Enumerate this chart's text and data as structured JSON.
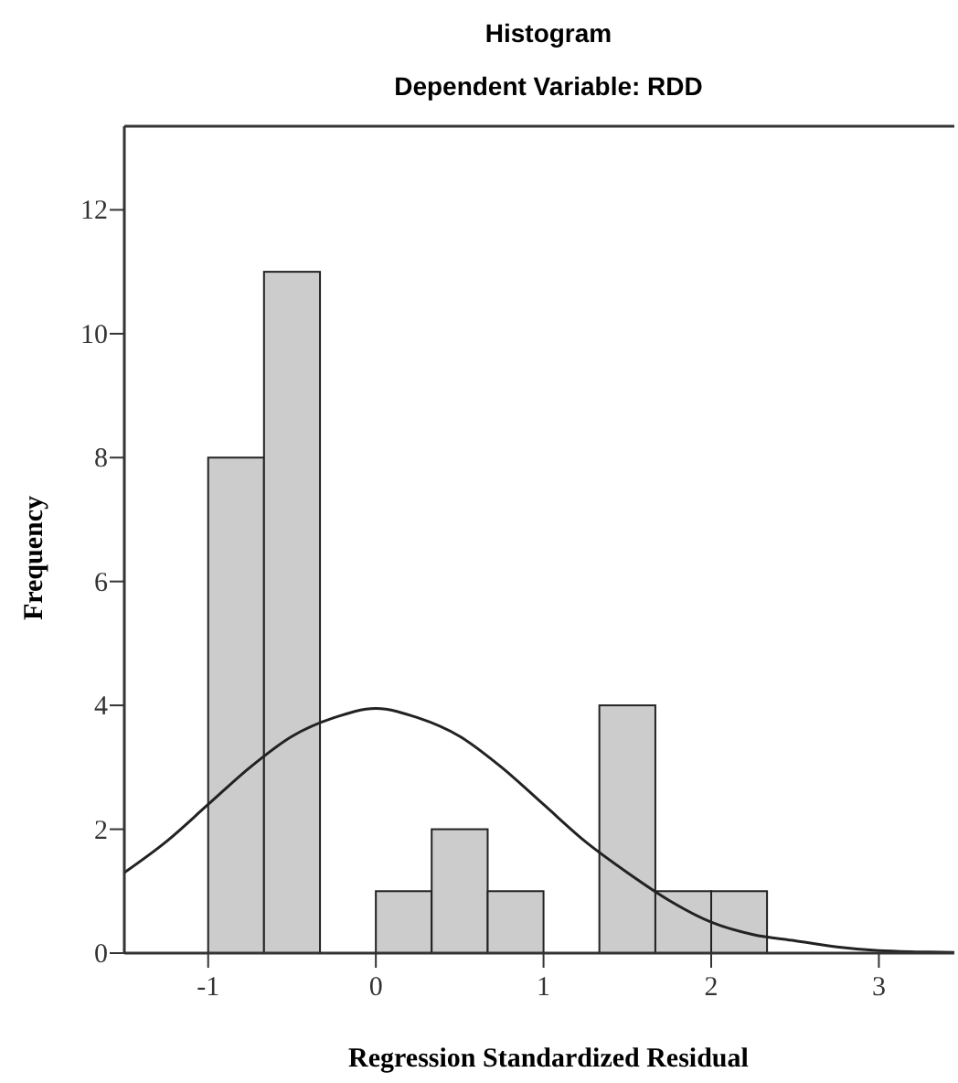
{
  "chart_data": {
    "type": "histogram",
    "title": "Histogram",
    "subtitle": "Dependent Variable: RDD",
    "xlabel": "Regression Standardized Residual",
    "ylabel": "Frequency",
    "xlim": [
      -1.5,
      3.45
    ],
    "xticks": [
      -1,
      0,
      1,
      2,
      3
    ],
    "ylim": [
      0,
      13.35
    ],
    "yticks": [
      0,
      2,
      4,
      6,
      8,
      10,
      12
    ],
    "grid": false,
    "series": [
      {
        "color": "#cccccc",
        "bins": [
          -1,
          -0.667,
          -0.333,
          0,
          0.333,
          0.667,
          1,
          1.333,
          1.667,
          2,
          2.333
        ],
        "values": [
          8,
          11,
          0,
          1,
          2,
          1,
          0,
          4,
          1,
          1
        ]
      },
      {
        "type": "line",
        "color": "#222222",
        "marker": "none",
        "x": [
          -1.5,
          -1.25,
          -1,
          -0.75,
          -0.5,
          -0.25,
          0,
          0.25,
          0.5,
          0.75,
          1,
          1.25,
          1.5,
          1.75,
          2,
          2.25,
          2.5,
          2.75,
          3,
          3.25,
          3.45
        ],
        "values": [
          1.3,
          1.8,
          2.4,
          3.0,
          3.5,
          3.8,
          3.95,
          3.8,
          3.5,
          3.0,
          2.4,
          1.8,
          1.3,
          0.85,
          0.5,
          0.3,
          0.2,
          0.1,
          0.04,
          0.02,
          0.01
        ]
      }
    ]
  }
}
